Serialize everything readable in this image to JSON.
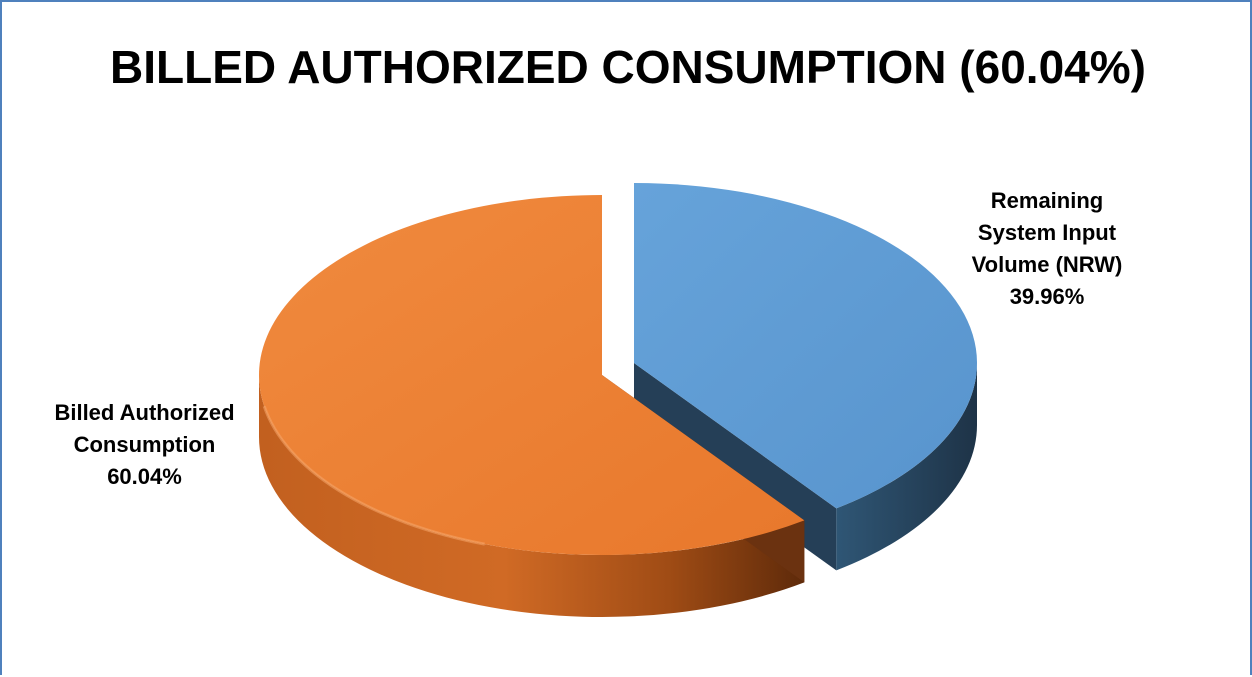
{
  "chart_data": {
    "type": "pie",
    "title": "BILLED AUTHORIZED CONSUMPTION (60.04%)",
    "style": "3d-exploded",
    "slices": [
      {
        "label_lines": [
          "Remaining",
          "System Input",
          "Volume (NRW)"
        ],
        "value": 39.96,
        "value_label": "39.96%",
        "color": "#5b9bd5",
        "side_color": "#243f58",
        "exploded": true
      },
      {
        "label_lines": [
          "Billed Authorized",
          "Consumption"
        ],
        "value": 60.04,
        "value_label": "60.04%",
        "color": "#ed7d31",
        "side_color": "#a14e18",
        "exploded": false
      }
    ],
    "legend": "none"
  }
}
